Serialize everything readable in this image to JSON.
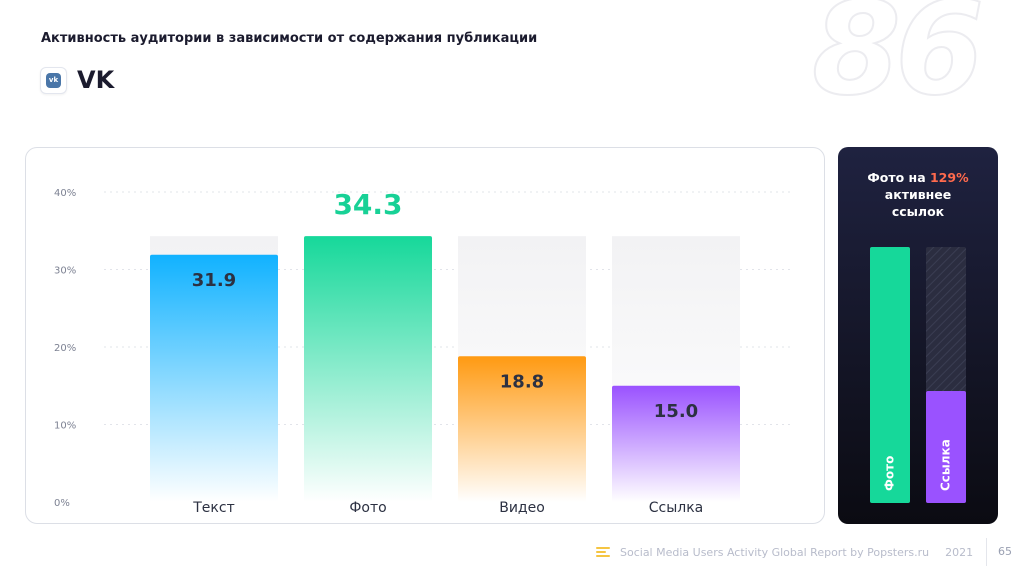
{
  "header": {
    "title": "Активность аудитории в зависимости от содержания публикации",
    "network": "VK",
    "network_icon": "vk-logo-icon",
    "section_number": "86"
  },
  "chart_data": {
    "type": "bar",
    "title": "Активность аудитории в зависимости от содержания публикации",
    "categories": [
      "Текст",
      "Фото",
      "Видео",
      "Ссылка"
    ],
    "values": [
      31.9,
      34.3,
      18.8,
      15.0
    ],
    "value_labels": [
      "31.9",
      "34.3",
      "18.8",
      "15.0"
    ],
    "highlight_index": 1,
    "xlabel": "",
    "ylabel": "",
    "ylim": [
      0,
      40
    ],
    "yticks": [
      0,
      10,
      20,
      30,
      40
    ],
    "ytick_labels": [
      "0%",
      "10%",
      "20%",
      "30%",
      "40%"
    ],
    "grid": true,
    "colors": [
      [
        "#11b2ff",
        "#ffffff"
      ],
      [
        "#16d89a",
        "#ffffff"
      ],
      [
        "#ff9a12",
        "#ffffff"
      ],
      [
        "#9a52ff",
        "#ffffff"
      ]
    ],
    "label_colors": [
      "#2c3142",
      "#18d196",
      "#2c3142",
      "#2c3142"
    ],
    "track_color": "#f2f2f4"
  },
  "comparison": {
    "title_prefix": "Фото на ",
    "title_accent": "129%",
    "title_line2": "активнее",
    "title_line3": "ссылок",
    "bars": [
      {
        "label": "Фото",
        "value": 34.3,
        "color": "#16d89a"
      },
      {
        "label": "Ссылка",
        "value": 15.0,
        "color": "#9a52ff"
      }
    ],
    "accent_color": "#ff6a4d"
  },
  "footer": {
    "report": "Social Media Users Activity Global Report by Popsters.ru",
    "year": "2021",
    "page": "65"
  }
}
